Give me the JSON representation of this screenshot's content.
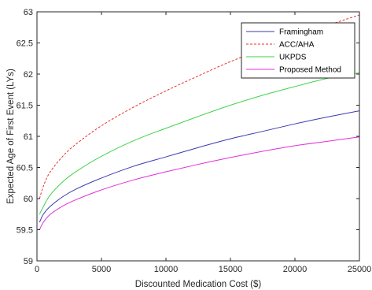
{
  "chart_data": {
    "type": "line",
    "xlabel": "Discounted Medication Cost ($)",
    "ylabel": "Expected Age of First Event (LYs)",
    "xlim": [
      0,
      25000
    ],
    "ylim": [
      59,
      63
    ],
    "xticks": [
      0,
      5000,
      10000,
      15000,
      20000,
      25000
    ],
    "yticks": [
      59,
      59.5,
      60,
      60.5,
      61,
      61.5,
      62,
      62.5,
      63
    ],
    "grid": false,
    "legend_position": "top-right",
    "series": [
      {
        "name": "Framingham",
        "color": "#3a3ab0",
        "style": "solid",
        "x": [
          200,
          500,
          1000,
          2000,
          3000,
          5000,
          7500,
          10000,
          12500,
          15000,
          17500,
          20000,
          22500,
          25000
        ],
        "y": [
          59.62,
          59.75,
          59.87,
          60.03,
          60.15,
          60.33,
          60.52,
          60.67,
          60.82,
          60.96,
          61.08,
          61.2,
          61.31,
          61.41
        ]
      },
      {
        "name": "ACC/AHA",
        "color": "#e8332a",
        "style": "dashed",
        "x": [
          200,
          500,
          1000,
          2000,
          3000,
          5000,
          7500,
          10000,
          12500,
          15000,
          17500,
          20000,
          22500,
          25000
        ],
        "y": [
          60.0,
          60.2,
          60.42,
          60.68,
          60.87,
          61.17,
          61.47,
          61.73,
          61.97,
          62.2,
          62.4,
          62.6,
          62.78,
          62.95
        ]
      },
      {
        "name": "UKPDS",
        "color": "#3fd34a",
        "style": "solid",
        "x": [
          200,
          500,
          1000,
          2000,
          3000,
          5000,
          7500,
          10000,
          12500,
          15000,
          17500,
          20000,
          22500,
          25000
        ],
        "y": [
          59.75,
          59.87,
          60.05,
          60.27,
          60.43,
          60.68,
          60.93,
          61.13,
          61.32,
          61.5,
          61.66,
          61.8,
          61.93,
          62.02
        ]
      },
      {
        "name": "Proposed Method",
        "color": "#e02fd8",
        "style": "solid",
        "x": [
          200,
          500,
          1000,
          2000,
          3000,
          5000,
          7500,
          10000,
          12500,
          15000,
          17500,
          20000,
          22500,
          25000
        ],
        "y": [
          59.5,
          59.62,
          59.74,
          59.88,
          59.98,
          60.14,
          60.3,
          60.43,
          60.55,
          60.66,
          60.76,
          60.85,
          60.92,
          60.99
        ]
      }
    ]
  }
}
